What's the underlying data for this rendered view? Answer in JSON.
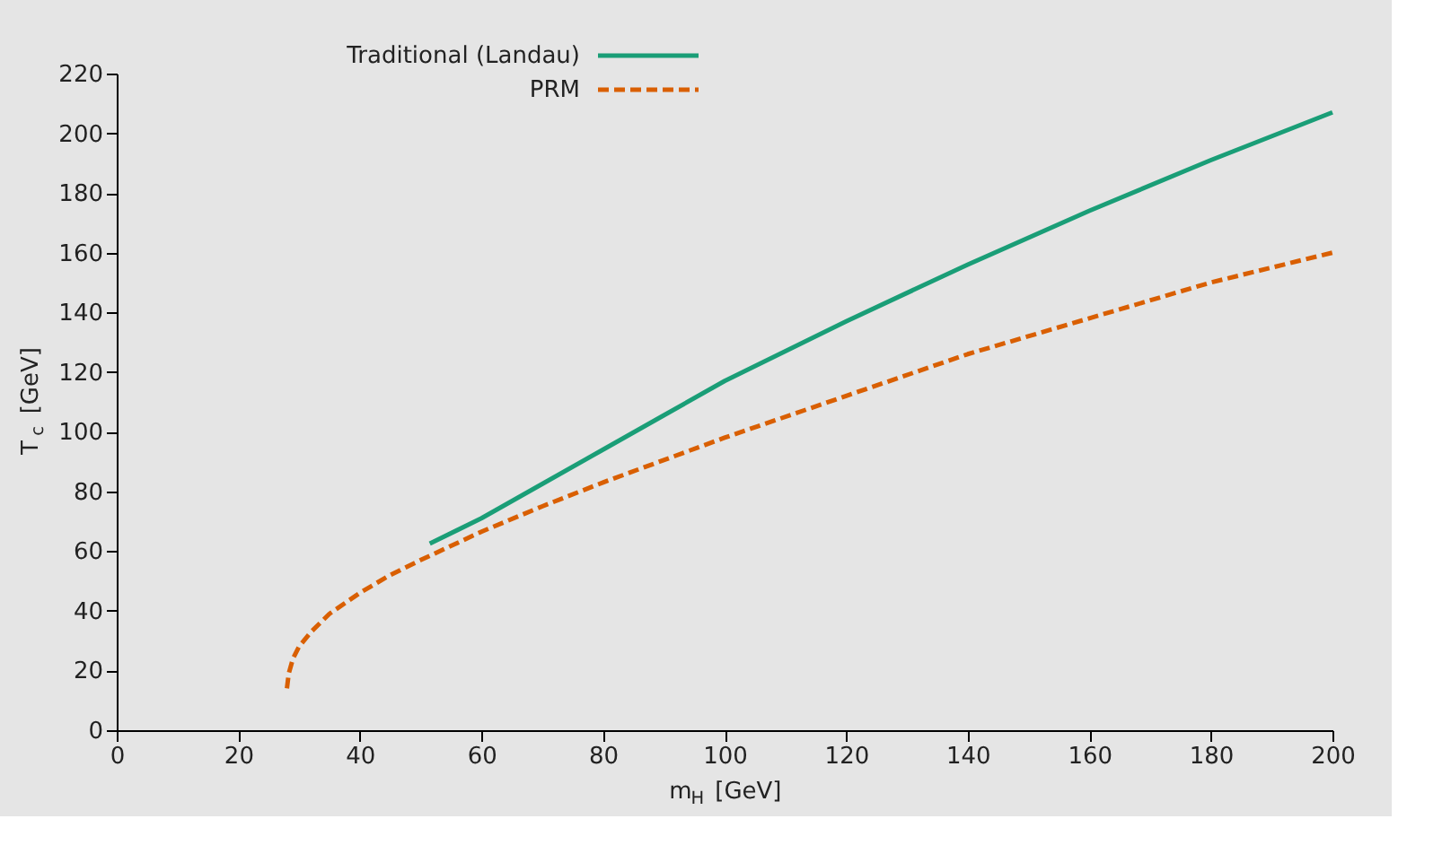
{
  "chart_data": {
    "type": "line",
    "xlabel": "m$_{H}$ [GeV]",
    "ylabel": "T$_{c}$ [GeV]",
    "xlim": [
      0,
      200
    ],
    "xticks": [
      0,
      20,
      40,
      60,
      80,
      100,
      120,
      140,
      160,
      180,
      200
    ],
    "ylim": [
      0,
      220
    ],
    "yticks": [
      0,
      20,
      40,
      60,
      80,
      100,
      120,
      140,
      160,
      180,
      200,
      220
    ],
    "grid": false,
    "legend": "top left",
    "marker": "none",
    "series": [
      {
        "name": "Traditional (Landau)",
        "color": "#1a9e77",
        "line_style": "solid",
        "x": [
          51.5,
          60,
          70,
          80,
          90,
          100,
          120,
          140,
          160,
          180,
          200
        ],
        "values": [
          62.5,
          71,
          82.5,
          94,
          105.5,
          117,
          137,
          156,
          174,
          191,
          207
        ]
      },
      {
        "name": "PRM",
        "color": "#d95f02",
        "line_style": "dashed",
        "x": [
          28,
          28.3,
          29,
          30,
          32,
          35,
          40,
          45,
          50,
          60,
          70,
          80,
          100,
          120,
          140,
          160,
          180,
          200
        ],
        "values": [
          14,
          19,
          24,
          28,
          33,
          39,
          46,
          52,
          57,
          66.5,
          75,
          83,
          98,
          112,
          126,
          138,
          150,
          160
        ]
      }
    ]
  }
}
